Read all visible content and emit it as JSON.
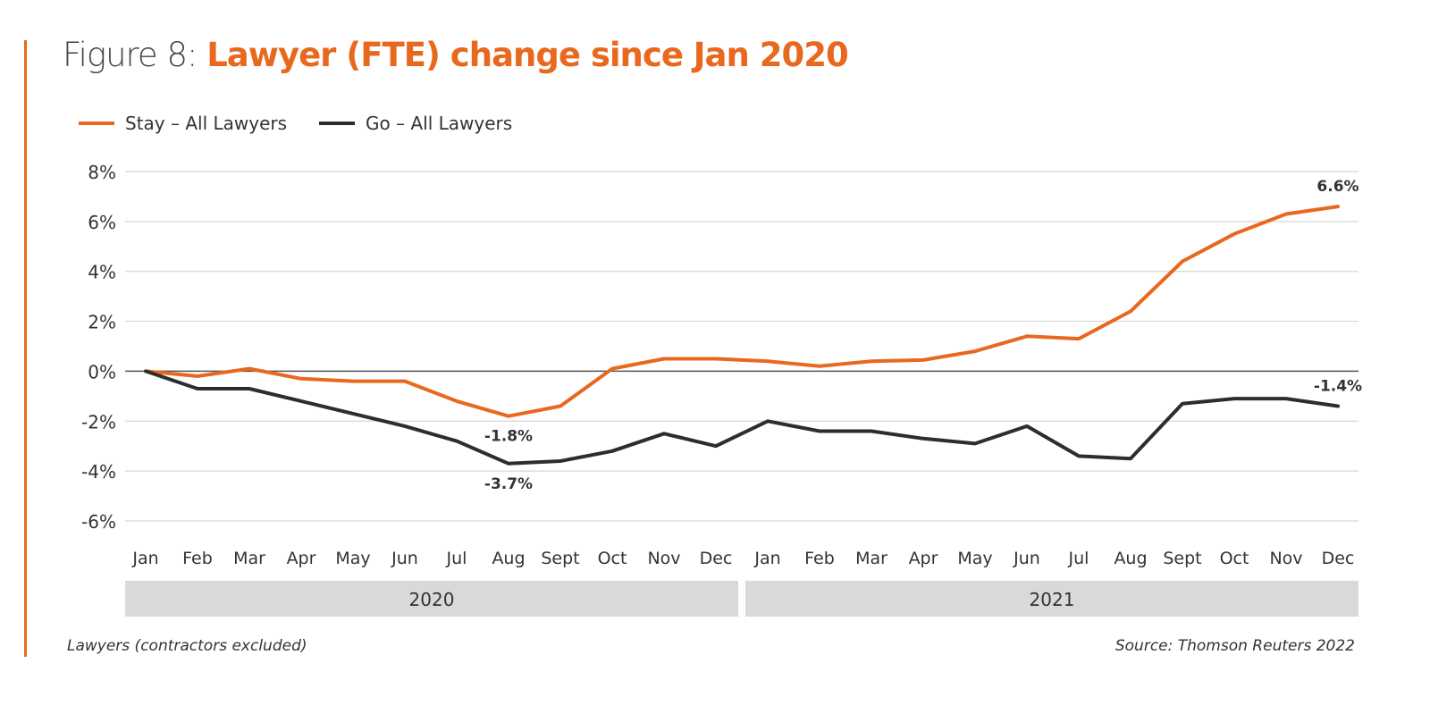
{
  "header": {
    "title_prefix": "Figure 8:",
    "title_main": "Lawyer (FTE) change since Jan 2020"
  },
  "colors": {
    "accent": "#e8681e",
    "stay": "#e8681e",
    "go": "#2d2d2d",
    "grid": "#d6d6d6",
    "zero_line": "#555555",
    "year_band": "#d9d9d9"
  },
  "footer": {
    "note": "Lawyers (contractors excluded)",
    "source": "Source: Thomson Reuters 2022"
  },
  "chart_data": {
    "type": "line",
    "title": "Lawyer (FTE) change since Jan 2020",
    "xlabel": "",
    "ylabel": "",
    "ylim": [
      -6,
      8
    ],
    "yticks": [
      8,
      6,
      4,
      2,
      0,
      -2,
      -4,
      -6
    ],
    "ytick_labels": [
      "8%",
      "6%",
      "4%",
      "2%",
      "0%",
      "-2%",
      "-4%",
      "-6%"
    ],
    "grid": true,
    "legend_position": "top-left",
    "categories": [
      "Jan",
      "Feb",
      "Mar",
      "Apr",
      "May",
      "Jun",
      "Jul",
      "Aug",
      "Sept",
      "Oct",
      "Nov",
      "Dec",
      "Jan",
      "Feb",
      "Mar",
      "Apr",
      "May",
      "Jun",
      "Jul",
      "Aug",
      "Sept",
      "Oct",
      "Nov",
      "Dec"
    ],
    "year_groups": [
      {
        "label": "2020",
        "start": 0,
        "end": 11
      },
      {
        "label": "2021",
        "start": 12,
        "end": 23
      }
    ],
    "series": [
      {
        "name": "Stay – All Lawyers",
        "color": "#e8681e",
        "values": [
          0,
          -0.2,
          0.1,
          -0.3,
          -0.4,
          -0.4,
          -1.2,
          -1.8,
          -1.4,
          0.1,
          0.5,
          0.5,
          0.4,
          0.2,
          0.4,
          0.45,
          0.8,
          1.4,
          1.3,
          2.4,
          4.4,
          5.5,
          6.3,
          6.6
        ]
      },
      {
        "name": "Go – All Lawyers",
        "color": "#2d2d2d",
        "values": [
          0,
          -0.7,
          -0.7,
          -1.2,
          -1.7,
          -2.2,
          -2.8,
          -3.7,
          -3.6,
          -3.2,
          -2.5,
          -3.0,
          -2.0,
          -2.4,
          -2.4,
          -2.7,
          -2.9,
          -2.2,
          -3.4,
          -3.5,
          -1.3,
          -1.1,
          -1.1,
          -1.4
        ]
      }
    ],
    "annotations": [
      {
        "series": 0,
        "index": 7,
        "text": "-1.8%",
        "placement": "below"
      },
      {
        "series": 1,
        "index": 7,
        "text": "-3.7%",
        "placement": "below"
      },
      {
        "series": 0,
        "index": 23,
        "text": "6.6%",
        "placement": "above"
      },
      {
        "series": 1,
        "index": 23,
        "text": "-1.4%",
        "placement": "above"
      }
    ]
  }
}
